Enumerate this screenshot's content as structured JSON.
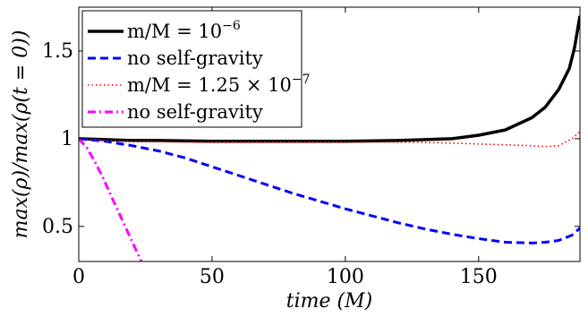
{
  "chart_data": {
    "type": "line",
    "title": "",
    "xlabel": "time (M)",
    "ylabel": "max(ρ)/max(ρ(t = 0))",
    "xlim": [
      0,
      188
    ],
    "ylim": [
      0.3,
      1.75
    ],
    "x_ticks": [
      0,
      50,
      100,
      150
    ],
    "x_tick_labels": [
      "0",
      "50",
      "100",
      "150"
    ],
    "y_ticks": [
      0.5,
      1,
      1.5
    ],
    "y_tick_labels": [
      "0.5",
      "1",
      "1.5"
    ],
    "grid": false,
    "legend_position": "top-left",
    "series": [
      {
        "name": "m/M = 10^−6",
        "color": "#000000",
        "style": "solid",
        "x": [
          0,
          10,
          20,
          30,
          50,
          75,
          100,
          120,
          140,
          150,
          160,
          170,
          175,
          180,
          184,
          186,
          188
        ],
        "y": [
          1.0,
          0.995,
          0.99,
          0.99,
          0.985,
          0.985,
          0.985,
          0.99,
          1.0,
          1.02,
          1.05,
          1.12,
          1.18,
          1.28,
          1.4,
          1.52,
          1.7
        ]
      },
      {
        "name": "no self-gravity",
        "color": "#0000ff",
        "style": "dashed",
        "x": [
          0,
          10,
          20,
          30,
          40,
          50,
          60,
          70,
          80,
          90,
          100,
          110,
          120,
          130,
          140,
          150,
          160,
          170,
          175,
          180,
          185,
          188
        ],
        "y": [
          1.0,
          0.985,
          0.96,
          0.93,
          0.89,
          0.84,
          0.79,
          0.74,
          0.69,
          0.645,
          0.6,
          0.56,
          0.52,
          0.485,
          0.455,
          0.43,
          0.41,
          0.405,
          0.41,
          0.42,
          0.45,
          0.49
        ]
      },
      {
        "name": "m/M = 1.25 × 10^−7",
        "color": "#ff0000",
        "style": "dotted",
        "x": [
          0,
          10,
          20,
          40,
          60,
          80,
          100,
          120,
          140,
          150,
          160,
          170,
          175,
          180,
          185,
          188
        ],
        "y": [
          1.0,
          0.99,
          0.985,
          0.98,
          0.98,
          0.98,
          0.98,
          0.98,
          0.975,
          0.97,
          0.965,
          0.96,
          0.955,
          0.96,
          1.0,
          1.04
        ]
      },
      {
        "name": "no self-gravity",
        "color": "#ff00ff",
        "style": "dashdot",
        "x": [
          0,
          3,
          6,
          9,
          12,
          15,
          18,
          21,
          23.5
        ],
        "y": [
          1.0,
          0.95,
          0.87,
          0.78,
          0.68,
          0.58,
          0.48,
          0.38,
          0.3
        ]
      }
    ],
    "legend_entries": [
      {
        "label": "m/M = 10",
        "superscript": "−6"
      },
      {
        "label": "no self-gravity",
        "superscript": ""
      },
      {
        "label": "m/M = 1.25 × 10",
        "superscript": "−7"
      },
      {
        "label": "no self-gravity",
        "superscript": ""
      }
    ]
  }
}
